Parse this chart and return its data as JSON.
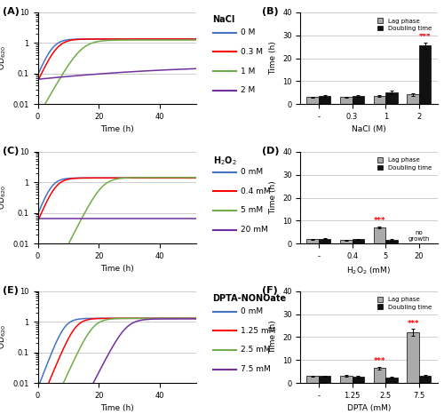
{
  "panel_A": {
    "title": "(A)",
    "xlabel": "Time (h)",
    "ylabel": "OD$_{620}$",
    "legend_title": "NaCl",
    "legend_labels": [
      "0 M",
      "0.3 M",
      "1 M",
      "2 M"
    ],
    "colors": [
      "#4472C4",
      "#FF0000",
      "#70AD47",
      "#7030A0"
    ],
    "ylim_log": [
      0.01,
      10
    ],
    "xlim": [
      0,
      52
    ],
    "xticks": [
      0,
      20,
      40
    ],
    "curves": {
      "0M": {
        "lag": 0,
        "rate": 0.55,
        "max_od": 1.35,
        "start_od": 0.09
      },
      "0.3M": {
        "lag": 1,
        "rate": 0.5,
        "max_od": 1.35,
        "start_od": 0.09
      },
      "1M": {
        "lag": 8,
        "rate": 0.4,
        "max_od": 1.25,
        "start_od": 0.09
      },
      "2M": {
        "lag": 0,
        "rate": 0.035,
        "max_od": 0.19,
        "start_od": 0.065
      }
    }
  },
  "panel_B": {
    "title": "(B)",
    "xlabel": "NaCl (M)",
    "ylabel": "Time (h)",
    "legend_labels": [
      "Lag phase",
      "Doubling time"
    ],
    "colors": [
      "#AAAAAA",
      "#111111"
    ],
    "categories": [
      "-",
      "0.3",
      "1",
      "2"
    ],
    "lag_phase": [
      3.0,
      3.0,
      3.5,
      4.2
    ],
    "doubling_time": [
      3.5,
      3.5,
      5.0,
      25.5
    ],
    "lag_err": [
      0.3,
      0.3,
      0.5,
      0.5
    ],
    "dt_err": [
      0.3,
      0.3,
      0.8,
      1.5
    ],
    "ylim": [
      0,
      40
    ],
    "yticks": [
      0,
      10,
      20,
      30,
      40
    ],
    "sig_labels": {
      "2": "***"
    },
    "sig_color": "#FF0000"
  },
  "panel_C": {
    "title": "(C)",
    "xlabel": "Time (h)",
    "ylabel": "OD$_{620}$",
    "legend_title": "H$_2$O$_2$",
    "legend_labels": [
      "0 mM",
      "0.4 mM",
      "5 mM",
      "20 mM"
    ],
    "colors": [
      "#4472C4",
      "#FF0000",
      "#70AD47",
      "#7030A0"
    ],
    "ylim_log": [
      0.01,
      10
    ],
    "xlim": [
      0,
      52
    ],
    "xticks": [
      0,
      20,
      40
    ],
    "curves": {
      "0mM": {
        "lag": 0,
        "rate": 0.6,
        "max_od": 1.4,
        "start_od": 0.09
      },
      "0.4mM": {
        "lag": 1,
        "rate": 0.55,
        "max_od": 1.4,
        "start_od": 0.09
      },
      "5mM": {
        "lag": 14,
        "rate": 0.45,
        "max_od": 1.45,
        "start_od": 0.055
      },
      "20mM": {
        "lag": 0,
        "rate": 0.0,
        "max_od": 0.065,
        "start_od": 0.065
      }
    }
  },
  "panel_D": {
    "title": "(D)",
    "xlabel": "H$_2$O$_2$ (mM)",
    "ylabel": "Time (h)",
    "legend_labels": [
      "Lag phase",
      "Doubling time"
    ],
    "colors": [
      "#AAAAAA",
      "#111111"
    ],
    "categories": [
      "-",
      "0.4",
      "5",
      "20"
    ],
    "lag_phase": [
      1.8,
      1.5,
      7.0,
      0.0
    ],
    "doubling_time": [
      2.0,
      1.8,
      1.5,
      0.0
    ],
    "lag_err": [
      0.2,
      0.2,
      0.5,
      0.0
    ],
    "dt_err": [
      0.2,
      0.2,
      0.3,
      0.0
    ],
    "ylim": [
      0,
      40
    ],
    "yticks": [
      0,
      10,
      20,
      30,
      40
    ],
    "sig_labels": {
      "5": "***"
    },
    "no_growth_label": "no\ngrowth",
    "no_growth_idx": 3,
    "sig_color": "#FF0000"
  },
  "panel_E": {
    "title": "(E)",
    "xlabel": "Time (h)",
    "ylabel": "OD$_{620}$",
    "legend_title": "DPTA-NONOate",
    "legend_labels": [
      "0 mM",
      "1.25 mM",
      "2.5 mM",
      "7.5 mM"
    ],
    "colors": [
      "#4472C4",
      "#FF0000",
      "#70AD47",
      "#7030A0"
    ],
    "ylim_log": [
      0.01,
      10
    ],
    "xlim": [
      0,
      52
    ],
    "xticks": [
      0,
      20,
      40
    ],
    "curves": {
      "0mM": {
        "lag": 2,
        "rate": 0.6,
        "max_od": 1.3,
        "start_od": 0.022
      },
      "1.25mM": {
        "lag": 5,
        "rate": 0.55,
        "max_od": 1.3,
        "start_od": 0.022
      },
      "2.5mM": {
        "lag": 10,
        "rate": 0.5,
        "max_od": 1.3,
        "start_od": 0.022
      },
      "7.5mM": {
        "lag": 20,
        "rate": 0.45,
        "max_od": 1.25,
        "start_od": 0.022
      }
    }
  },
  "panel_F": {
    "title": "(F)",
    "xlabel": "DPTA (mM)",
    "ylabel": "Time (h)",
    "legend_labels": [
      "Lag phase",
      "Doubling time"
    ],
    "colors": [
      "#AAAAAA",
      "#111111"
    ],
    "categories": [
      "-",
      "1.25",
      "2.5",
      "7.5"
    ],
    "lag_phase": [
      3.0,
      3.2,
      6.5,
      22.0
    ],
    "doubling_time": [
      3.0,
      2.8,
      2.5,
      3.2
    ],
    "lag_err": [
      0.3,
      0.3,
      0.5,
      1.5
    ],
    "dt_err": [
      0.3,
      0.3,
      0.3,
      0.4
    ],
    "ylim": [
      0,
      40
    ],
    "yticks": [
      0,
      10,
      20,
      30,
      40
    ],
    "sig_labels": {
      "2.5": "***",
      "7.5": "***"
    },
    "sig_color": "#FF0000"
  }
}
